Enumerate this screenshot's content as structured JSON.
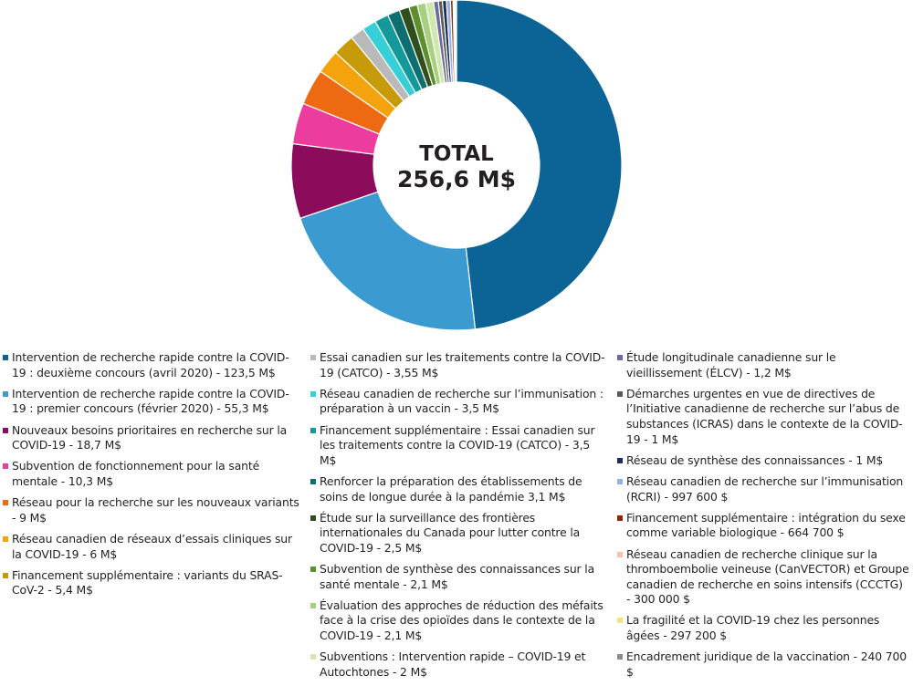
{
  "chart_data": {
    "type": "pie",
    "title": "",
    "center_label": {
      "title": "TOTAL",
      "value": "256,6 M$"
    },
    "unit": "M$",
    "legend_position": "bottom",
    "slices": [
      {
        "label": "Intervention de recherche rapide contre la COVID-19 : deuxième concours (avril 2020) - 123,5 M$",
        "value": 123.5,
        "color": "#0b6495"
      },
      {
        "label": "Intervention de recherche rapide contre la COVID-19 : premier concours (février 2020) - 55,3 M$",
        "value": 55.3,
        "color": "#3b9bd1"
      },
      {
        "label": "Nouveaux besoins prioritaires en recherche sur la COVID-19 - 18,7 M$",
        "value": 18.7,
        "color": "#8c0b5a"
      },
      {
        "label": "Subvention de fonctionnement pour la santé mentale - 10,3 M$",
        "value": 10.3,
        "color": "#ec3c9e"
      },
      {
        "label": "Réseau pour la recherche sur les nouveaux variants - 9 M$",
        "value": 9,
        "color": "#ee6a12"
      },
      {
        "label": "Réseau canadien de réseaux d’essais cliniques sur la COVID-19 - 6 M$",
        "value": 6,
        "color": "#f4a30d"
      },
      {
        "label": "Financement supplémentaire : variants du SRAS-CoV-2 - 5,4 M$",
        "value": 5.4,
        "color": "#c79a0a"
      },
      {
        "label": "Essai canadien sur les traitements contre la COVID-19 (CATCO) - 3,55 M$",
        "value": 3.55,
        "color": "#b9b9b9"
      },
      {
        "label": "Réseau canadien de recherche sur l’immunisation : préparation à un vaccin - 3,5 M$",
        "value": 3.5,
        "color": "#36cfd8"
      },
      {
        "label": "Financement supplémentaire : Essai canadien sur les traitements contre la COVID-19 (CATCO) - 3,5 M$",
        "value": 3.5,
        "color": "#13999a"
      },
      {
        "label": "Renforcer la préparation des établissements de soins de longue durée à la pandémie 3,1 M$",
        "value": 3.1,
        "color": "#0e6f70"
      },
      {
        "label": "Étude sur la surveillance des frontières internationales du Canada pour lutter contre la COVID-19 - 2,5 M$",
        "value": 2.5,
        "color": "#2f4f1c"
      },
      {
        "label": "Subvention de synthèse des connaissances sur la santé mentale - 2,1 M$",
        "value": 2.1,
        "color": "#5e8f2e"
      },
      {
        "label": "Évaluation des approches de réduction des méfaits face à la crise des opioïdes dans le contexte de la COVID-19 - 2,1 M$",
        "value": 2.1,
        "color": "#a6cf7e"
      },
      {
        "label": "Subventions : Intervention rapide – COVID-19 et Autochtones - 2 M$",
        "value": 2,
        "color": "#cfe8ae"
      },
      {
        "label": "Étude longitudinale canadienne sur le vieillissement (ÉLCV) - 1,2 M$",
        "value": 1.2,
        "color": "#6f6a9e"
      },
      {
        "label": "Démarches urgentes en vue de directives de l’Initiative canadienne de recherche sur l’abus de substances (ICRAS) dans le contexte de la COVID-19 - 1 M$",
        "value": 1,
        "color": "#5a5a5a"
      },
      {
        "label": "Réseau de synthèse des connaissances - 1 M$",
        "value": 1,
        "color": "#1c2f5a"
      },
      {
        "label": "Réseau canadien de recherche sur l’immunisation (RCRI) - 997 600 $",
        "value": 0.9976,
        "color": "#8fb4e2"
      },
      {
        "label": "Financement supplémentaire : intégration du sexe comme variable biologique - 664 700 $",
        "value": 0.6647,
        "color": "#8e2a0c"
      },
      {
        "label": "Réseau canadien de recherche clinique sur la thromboembolie veineuse (CanVECTOR) et Groupe canadien de recherche en soins intensifs (CCCTG) - 300 000 $",
        "value": 0.3,
        "color": "#f6c2a8"
      },
      {
        "label": "La fragilité et la COVID-19 chez les personnes âgées - 297 200 $",
        "value": 0.2972,
        "color": "#f7e08a"
      },
      {
        "label": "Encadrement juridique de la vaccination - 240 700 $",
        "value": 0.2407,
        "color": "#8c8c8c"
      }
    ],
    "legend_columns": [
      [
        0,
        1,
        2,
        3,
        4,
        5,
        6
      ],
      [
        7,
        8,
        9,
        10,
        11,
        12,
        13,
        14
      ],
      [
        15,
        16,
        17,
        18,
        19,
        20,
        21,
        22
      ]
    ]
  }
}
